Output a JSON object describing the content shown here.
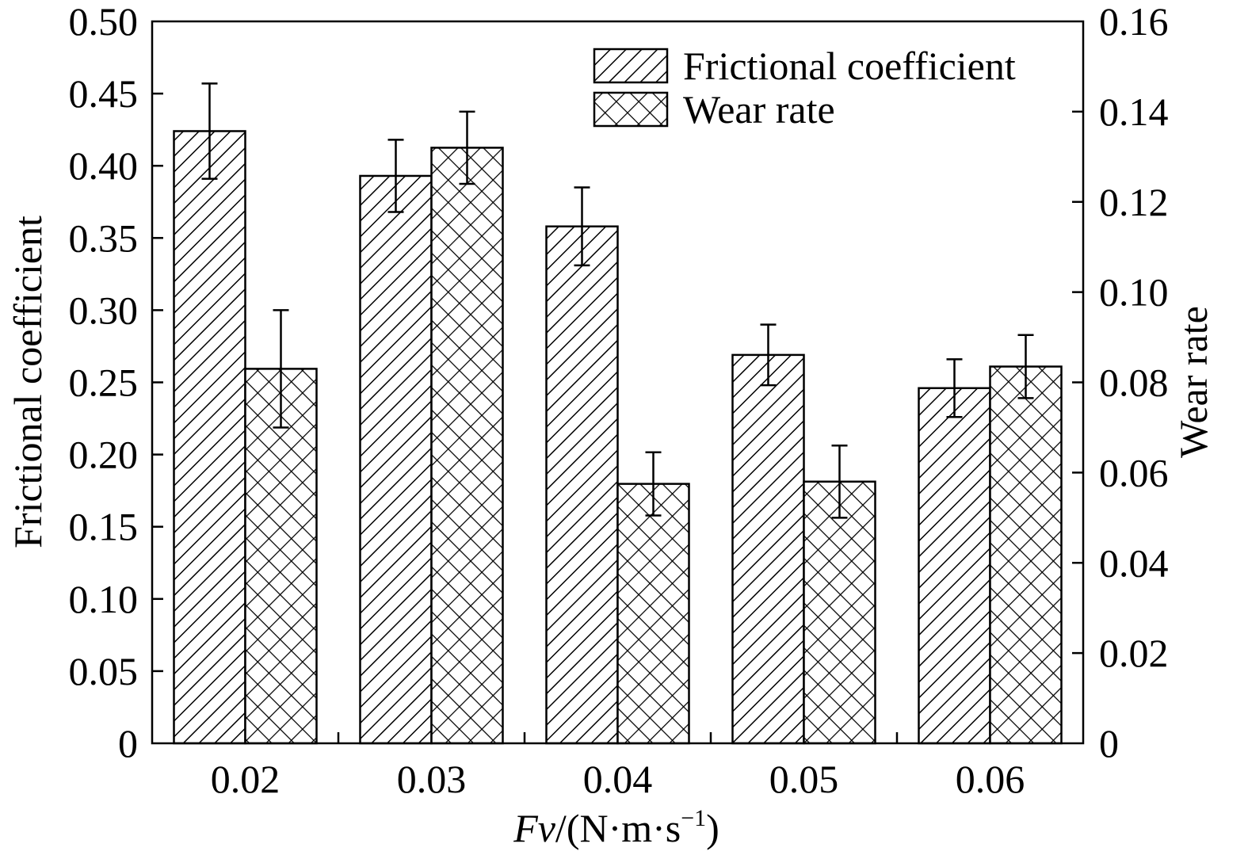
{
  "chart_data": {
    "type": "bar",
    "categories": [
      "0.02",
      "0.03",
      "0.04",
      "0.05",
      "0.06"
    ],
    "series": [
      {
        "name": "Frictional coefficient",
        "axis": "left",
        "pattern": "diagonal-hatch",
        "values": [
          0.424,
          0.393,
          0.358,
          0.269,
          0.246
        ],
        "errors": [
          0.033,
          0.025,
          0.027,
          0.021,
          0.02
        ]
      },
      {
        "name": "Wear rate",
        "axis": "right",
        "pattern": "cross-hatch",
        "values": [
          0.083,
          0.132,
          0.0575,
          0.058,
          0.0835
        ],
        "errors": [
          0.013,
          0.008,
          0.007,
          0.008,
          0.007
        ]
      }
    ],
    "xlabel_italic": "Fv",
    "xlabel_rest": "/(N·m·s",
    "xlabel_sup": "−1",
    "xlabel_close": ")",
    "ylabel_left": "Frictional coefficient",
    "ylabel_right": "Wear rate",
    "ylim_left": [
      0,
      0.5
    ],
    "ylim_right": [
      0,
      0.16
    ],
    "yticks_left": [
      "0",
      "0.05",
      "0.10",
      "0.15",
      "0.20",
      "0.25",
      "0.30",
      "0.35",
      "0.40",
      "0.45",
      "0.50"
    ],
    "yticks_right": [
      "0",
      "0.02",
      "0.04",
      "0.06",
      "0.08",
      "0.10",
      "0.12",
      "0.14",
      "0.16"
    ],
    "legend_position": "top-right",
    "grid": false,
    "colors": {
      "ink": "#000000",
      "background": "#ffffff"
    }
  }
}
